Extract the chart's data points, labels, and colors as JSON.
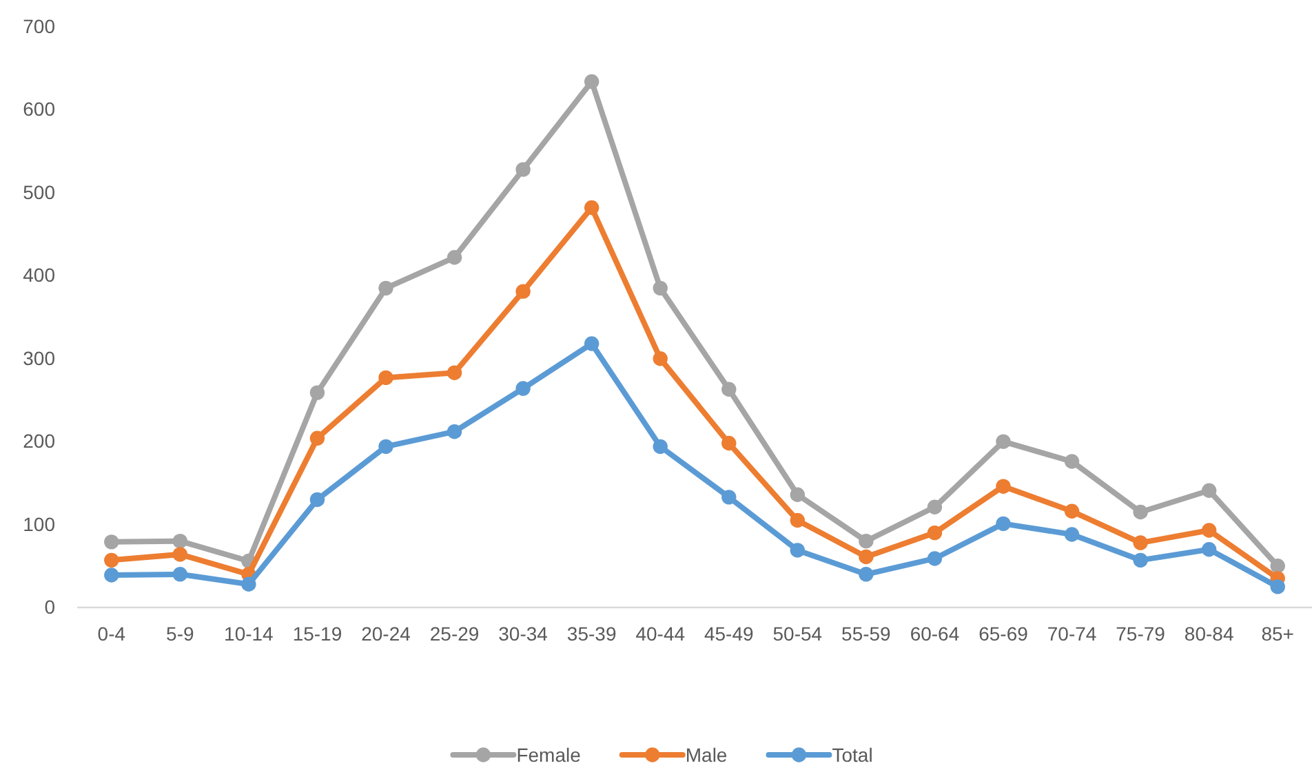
{
  "chart_data": {
    "type": "line",
    "categories": [
      "0-4",
      "5-9",
      "10-14",
      "15-19",
      "20-24",
      "25-29",
      "30-34",
      "35-39",
      "40-44",
      "45-49",
      "50-54",
      "55-59",
      "60-64",
      "65-69",
      "70-74",
      "75-79",
      "80-84",
      "85+"
    ],
    "series": [
      {
        "name": "Female",
        "color": "#a5a5a5",
        "values": [
          79,
          80,
          56,
          259,
          385,
          422,
          528,
          634,
          385,
          263,
          136,
          80,
          121,
          200,
          176,
          115,
          141,
          50
        ]
      },
      {
        "name": "Male",
        "color": "#ed7d31",
        "values": [
          57,
          64,
          40,
          204,
          277,
          283,
          381,
          482,
          300,
          198,
          105,
          61,
          90,
          146,
          116,
          78,
          93,
          35
        ]
      },
      {
        "name": "Total",
        "color": "#5b9bd5",
        "values": [
          39,
          40,
          28,
          130,
          194,
          212,
          264,
          318,
          194,
          133,
          69,
          40,
          59,
          101,
          88,
          57,
          70,
          25
        ]
      }
    ],
    "ylim": [
      0,
      700
    ],
    "yticks": [
      0,
      100,
      200,
      300,
      400,
      500,
      600,
      700
    ],
    "grid": false,
    "legend": "bottom",
    "marker": "circle",
    "line_style": "solid"
  }
}
